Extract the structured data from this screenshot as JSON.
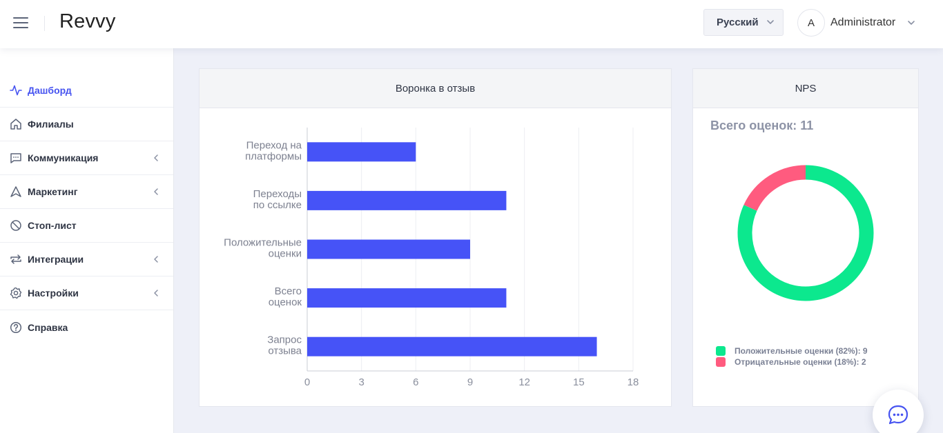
{
  "header": {
    "logo": "Revvy",
    "language": "Русский",
    "avatar_letter": "A",
    "user_name": "Administrator"
  },
  "sidebar": {
    "items": [
      {
        "label": "Дашборд",
        "icon": "activity-icon",
        "active": true,
        "has_submenu": false
      },
      {
        "label": "Филиалы",
        "icon": "home-icon",
        "active": false,
        "has_submenu": false
      },
      {
        "label": "Коммуникация",
        "icon": "chat-bubble-icon",
        "active": false,
        "has_submenu": true
      },
      {
        "label": "Маркетинг",
        "icon": "navigation-icon",
        "active": false,
        "has_submenu": true
      },
      {
        "label": "Стоп-лист",
        "icon": "ban-icon",
        "active": false,
        "has_submenu": false
      },
      {
        "label": "Интеграции",
        "icon": "repeat-icon",
        "active": false,
        "has_submenu": true
      },
      {
        "label": "Настройки",
        "icon": "settings-icon",
        "active": false,
        "has_submenu": true
      },
      {
        "label": "Справка",
        "icon": "help-icon",
        "active": false,
        "has_submenu": false
      }
    ]
  },
  "funnel_card": {
    "title": "Воронка в отзыв"
  },
  "nps_card": {
    "title": "NPS",
    "total_label": "Всего оценок: 11"
  },
  "chart_data": [
    {
      "type": "bar",
      "orientation": "horizontal",
      "categories": [
        [
          "Переход на",
          "платформы"
        ],
        [
          "Переходы",
          "по ссылке"
        ],
        [
          "Положительные",
          "оценки"
        ],
        [
          "Всего",
          "оценок"
        ],
        [
          "Запрос",
          "отзыва"
        ]
      ],
      "values": [
        6,
        11,
        9,
        11,
        16
      ],
      "xlim": [
        0,
        18
      ],
      "xticks": [
        "0",
        "3",
        "6",
        "9",
        "12",
        "15",
        "18"
      ],
      "grid": true,
      "color": "#4653f7"
    },
    {
      "type": "pie",
      "style": "donut",
      "slices": [
        {
          "label": "Положительные оценки (82%): 9",
          "value": 9,
          "color": "#0ce88e"
        },
        {
          "label": "Отрицательные оценки (18%): 2",
          "value": 2,
          "color": "#ff5b7f"
        }
      ]
    }
  ],
  "colors": {
    "accent": "#4653f0",
    "bar": "#4653f7",
    "positive": "#0ce88e",
    "negative": "#ff5b7f"
  }
}
